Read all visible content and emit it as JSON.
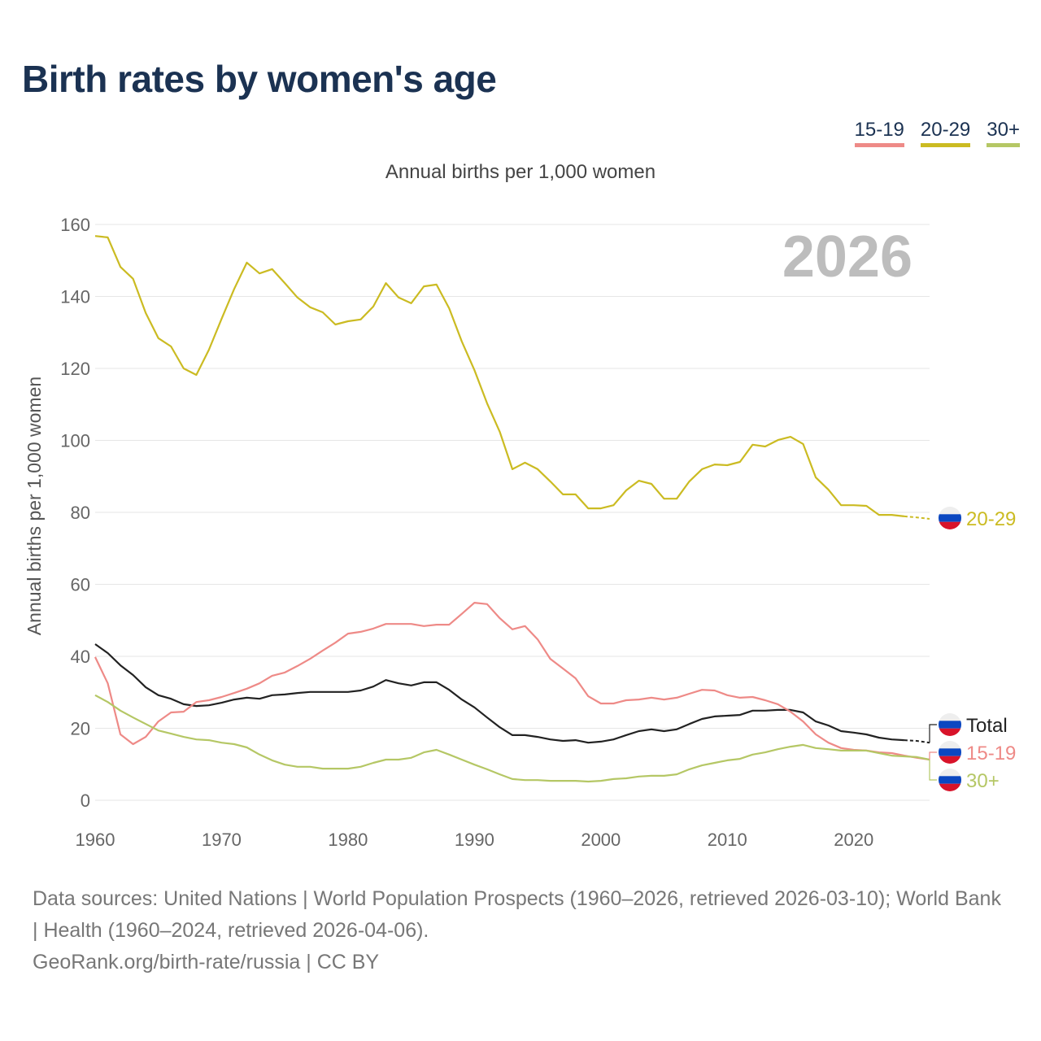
{
  "title": "Birth rates by women's age",
  "legend": [
    {
      "label": "15-19",
      "color": "#ee8a87"
    },
    {
      "label": "20-29",
      "color": "#cbbb22"
    },
    {
      "label": "30+",
      "color": "#b5c765"
    }
  ],
  "footer": {
    "line1": "Data sources: United Nations | World Population Prospects (1960–2026, retrieved 2026-03-10); World Bank | Health (1960–2024, retrieved 2026-04-06).",
    "line2": "GeoRank.org/birth-rate/russia | CC BY"
  },
  "chart_data": {
    "type": "line",
    "title": "Birth rates by women's age",
    "subtitle": "Annual births per 1,000 women",
    "ylabel": "Annual births per 1,000 women",
    "xlabel": "",
    "year_watermark": "2026",
    "xlim": [
      1960,
      2026
    ],
    "ylim": [
      0,
      160
    ],
    "x_ticks": [
      "1960",
      "1970",
      "1980",
      "1990",
      "2000",
      "2010",
      "2020"
    ],
    "y_ticks": [
      "0",
      "20",
      "40",
      "60",
      "80",
      "100",
      "120",
      "140",
      "160"
    ],
    "grid": true,
    "country_flag": "russia",
    "x_start": 1960,
    "series": [
      {
        "name": "20-29",
        "label": "20-29",
        "color": "#cbbb22",
        "dashed_from": 2024,
        "values": [
          156.8,
          156.4,
          148.2,
          144.9,
          135.4,
          128.4,
          126.1,
          120,
          118.2,
          125.2,
          133.8,
          142.1,
          149.4,
          146.4,
          147.6,
          143.7,
          139.7,
          137,
          135.6,
          132.2,
          133.1,
          133.6,
          137.2,
          143.7,
          139.7,
          138.1,
          142.8,
          143.3,
          136.7,
          127.5,
          119.5,
          110.3,
          102.4,
          92,
          93.8,
          92,
          88.6,
          85,
          85,
          81.1,
          81.1,
          82,
          86.1,
          88.8,
          87.9,
          83.8,
          83.8,
          88.6,
          92,
          93.3,
          93.1,
          94,
          98.8,
          98.3,
          100.1,
          101,
          99,
          89.7,
          86.3,
          82,
          82,
          81.8,
          79.3,
          79.3,
          78.9,
          78.6,
          78.2
        ]
      },
      {
        "name": "Total",
        "label": "Total",
        "color": "#222222",
        "dashed_from": 2024,
        "values": [
          43.4,
          40.9,
          37.5,
          34.8,
          31.4,
          29.2,
          28.2,
          26.7,
          26.2,
          26.4,
          27.1,
          28,
          28.5,
          28.2,
          29.2,
          29.4,
          29.8,
          30.1,
          30.1,
          30.1,
          30.1,
          30.5,
          31.6,
          33.4,
          32.5,
          31.9,
          32.8,
          32.8,
          30.7,
          28,
          25.8,
          23,
          20.3,
          18.1,
          18.1,
          17.6,
          16.9,
          16.5,
          16.7,
          16,
          16.3,
          16.9,
          18.1,
          19.2,
          19.7,
          19.2,
          19.7,
          21.2,
          22.6,
          23.3,
          23.5,
          23.7,
          24.9,
          24.9,
          25.1,
          25.1,
          24.4,
          21.9,
          20.8,
          19.2,
          18.8,
          18.3,
          17.4,
          16.9,
          16.7,
          16.5,
          16
        ]
      },
      {
        "name": "15-19",
        "label": "15-19",
        "color": "#ee8a87",
        "dashed_from": null,
        "values": [
          39.8,
          32.5,
          18.3,
          15.6,
          17.6,
          21.9,
          24.4,
          24.6,
          27.3,
          27.8,
          28.7,
          29.8,
          31,
          32.5,
          34.6,
          35.5,
          37.3,
          39.3,
          41.6,
          43.8,
          46.3,
          46.8,
          47.7,
          49,
          49,
          49,
          48.4,
          48.8,
          48.8,
          51.8,
          54.9,
          54.5,
          50.6,
          47.5,
          48.4,
          44.7,
          39.3,
          36.6,
          33.9,
          28.9,
          26.9,
          26.9,
          27.8,
          28,
          28.5,
          28,
          28.5,
          29.6,
          30.7,
          30.5,
          29.2,
          28.5,
          28.7,
          27.8,
          26.7,
          24.6,
          21.9,
          18.3,
          16,
          14.5,
          14,
          13.8,
          13.3,
          13.1,
          12.4,
          11.8,
          11.3
        ]
      },
      {
        "name": "30+",
        "label": "30+",
        "color": "#b5c765",
        "dashed_from": null,
        "values": [
          29.2,
          27.3,
          24.9,
          23,
          21.2,
          19.4,
          18.5,
          17.6,
          16.9,
          16.7,
          16,
          15.6,
          14.7,
          12.7,
          11.1,
          9.9,
          9.3,
          9.3,
          8.8,
          8.8,
          8.8,
          9.3,
          10.4,
          11.3,
          11.3,
          11.8,
          13.3,
          14,
          12.7,
          11.3,
          9.9,
          8.6,
          7.2,
          5.9,
          5.6,
          5.6,
          5.4,
          5.4,
          5.4,
          5.2,
          5.4,
          5.9,
          6.1,
          6.6,
          6.8,
          6.8,
          7.2,
          8.6,
          9.7,
          10.4,
          11.1,
          11.5,
          12.7,
          13.3,
          14.2,
          14.9,
          15.4,
          14.5,
          14.2,
          13.8,
          13.8,
          13.8,
          13.1,
          12.4,
          12.2,
          12,
          11.3
        ]
      }
    ]
  }
}
